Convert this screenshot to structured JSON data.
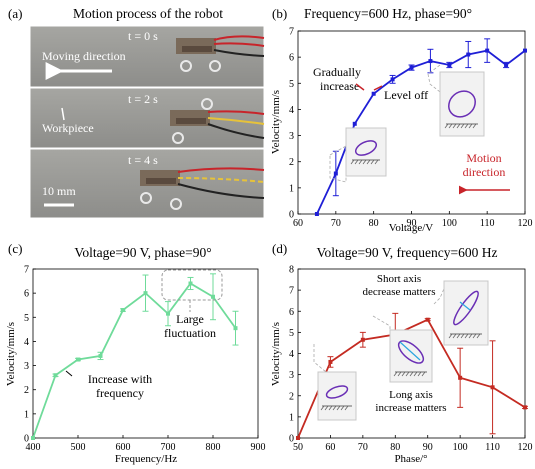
{
  "panel_a": {
    "label": "(a)",
    "title": "Motion process of the robot",
    "frames": [
      {
        "time": "t = 0 s"
      },
      {
        "time": "t = 2 s"
      },
      {
        "time": "t = 4 s"
      }
    ],
    "moving_direction": "Moving direction",
    "workpiece": "Workpiece",
    "scale_bar": "10 mm",
    "colors": {
      "background": "#9a9a98",
      "wire_red": "#c8242a",
      "wire_yellow": "#e6c23a",
      "metal": "#7a6a5a"
    }
  },
  "chart_data": [
    {
      "panel": "(b)",
      "type": "line",
      "title": "Frequency=600 Hz, phase=90°",
      "xlabel": "Voltage/V",
      "ylabel": "Velocity/mm/s",
      "xlim": [
        60,
        120
      ],
      "ylim": [
        0,
        7
      ],
      "xticks": [
        60,
        70,
        80,
        90,
        100,
        110,
        120
      ],
      "yticks": [
        0,
        1,
        2,
        3,
        4,
        5,
        6,
        7
      ],
      "color": "#1f1fd6",
      "x": [
        65,
        70,
        75,
        80,
        85,
        90,
        95,
        100,
        105,
        110,
        115,
        120
      ],
      "y": [
        0,
        1.55,
        3.45,
        4.6,
        5.15,
        5.6,
        5.85,
        5.7,
        6.1,
        6.25,
        5.7,
        6.25
      ],
      "err": [
        0,
        0.85,
        0,
        0,
        0.15,
        0.1,
        0.45,
        0.1,
        0.5,
        0.45,
        0.1,
        0
      ],
      "annotations": [
        "Gradually increase",
        "Level off",
        "Motion direction"
      ]
    },
    {
      "panel": "(c)",
      "type": "line",
      "title": "Voltage=90 V, phase=90°",
      "xlabel": "Frequency/Hz",
      "ylabel": "Velocity/mm/s",
      "xlim": [
        400,
        900
      ],
      "ylim": [
        0,
        7
      ],
      "xticks": [
        400,
        500,
        600,
        700,
        800,
        900
      ],
      "yticks": [
        0,
        1,
        2,
        3,
        4,
        5,
        6,
        7
      ],
      "color": "#6fdb9a",
      "x": [
        400,
        450,
        500,
        550,
        600,
        650,
        700,
        750,
        800,
        850
      ],
      "y": [
        0,
        2.6,
        3.25,
        3.4,
        5.3,
        6.0,
        5.15,
        6.4,
        5.85,
        4.55
      ],
      "err": [
        0,
        0.05,
        0.05,
        0.15,
        0.05,
        0.75,
        0.5,
        0.25,
        0.95,
        0.7
      ],
      "annotations": [
        "Large fluctuation",
        "Increase with frequency"
      ]
    },
    {
      "panel": "(d)",
      "type": "line",
      "title": "Voltage=90 V, frequency=600 Hz",
      "xlabel": "Phase/°",
      "ylabel": "Velocity/mm/s",
      "xlim": [
        50,
        120
      ],
      "ylim": [
        0,
        8
      ],
      "xticks": [
        50,
        60,
        70,
        80,
        90,
        100,
        110,
        120
      ],
      "yticks": [
        0,
        1,
        2,
        3,
        4,
        5,
        6,
        7,
        8
      ],
      "color": "#c42b22",
      "x": [
        50,
        60,
        70,
        80,
        90,
        100,
        110,
        120
      ],
      "y": [
        0,
        3.6,
        4.65,
        4.9,
        5.6,
        2.85,
        2.4,
        1.45
      ],
      "err": [
        0,
        0.25,
        0.35,
        1.0,
        0.05,
        1.4,
        2.2,
        0.05
      ],
      "annotations": [
        "Short axis decrease matters",
        "Long axis increase matters"
      ]
    }
  ]
}
